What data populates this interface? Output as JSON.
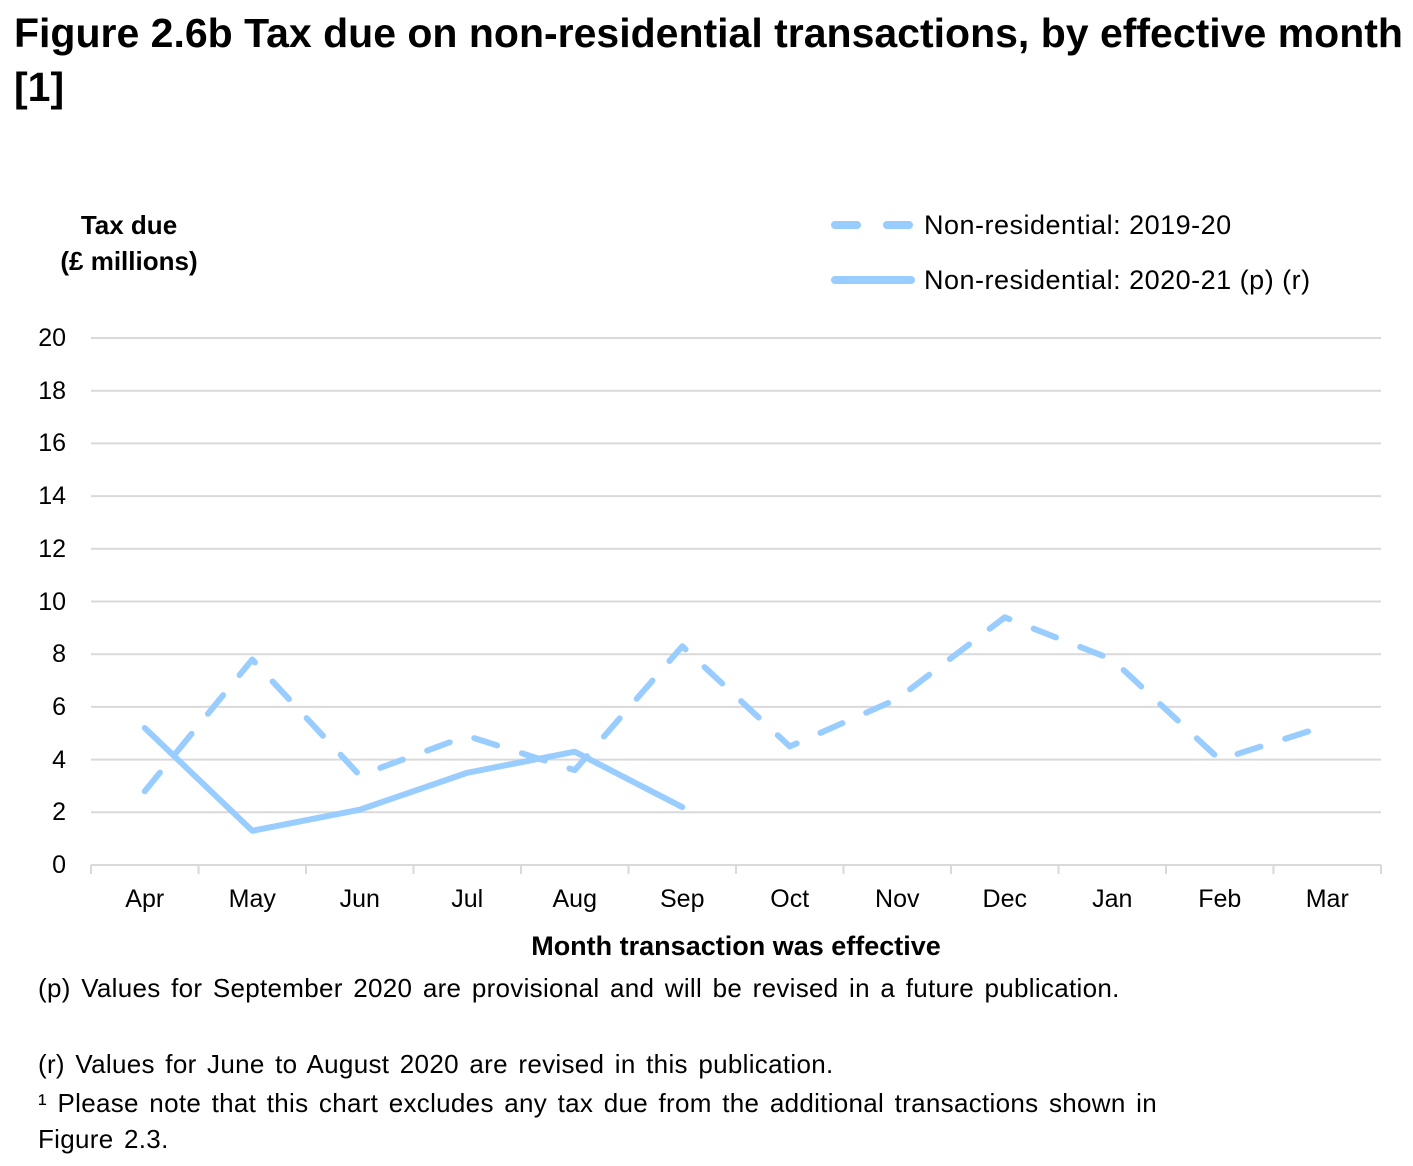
{
  "title": "Figure 2.6b  Tax due on non-residential transactions, by effective month [1]",
  "chart_data": {
    "type": "line",
    "title": "Figure 2.6b  Tax due on non-residential transactions, by effective month [1]",
    "ylabel_line1": "Tax due",
    "ylabel_line2": "(£ millions)",
    "xlabel": "Month transaction was effective",
    "ylim": [
      0,
      20
    ],
    "yticks": [
      "0",
      "2",
      "4",
      "6",
      "8",
      "10",
      "12",
      "14",
      "16",
      "18",
      "20"
    ],
    "ytick_values": [
      0,
      2,
      4,
      6,
      8,
      10,
      12,
      14,
      16,
      18,
      20
    ],
    "grid": true,
    "legend_position": "top-right",
    "categories": [
      "Apr",
      "May",
      "Jun",
      "Jul",
      "Aug",
      "Sep",
      "Oct",
      "Nov",
      "Dec",
      "Jan",
      "Feb",
      "Mar"
    ],
    "series": [
      {
        "name": "Non-residential: 2019-20",
        "style": "dashed",
        "color": "#99CCFF",
        "values": [
          2.8,
          7.8,
          3.4,
          4.9,
          3.6,
          8.3,
          4.5,
          6.3,
          9.4,
          7.8,
          4.0,
          5.3
        ]
      },
      {
        "name": "Non-residential: 2020-21 (p) (r)",
        "style": "solid",
        "color": "#99CCFF",
        "values": [
          5.2,
          1.3,
          2.1,
          3.5,
          4.3,
          2.2,
          null,
          null,
          null,
          null,
          null,
          null
        ]
      }
    ]
  },
  "notes": [
    "(p) Values for September 2020 are provisional and will be revised in a future publication.",
    "(r) Values for June to August 2020 are revised in this publication.",
    "¹ Please note that this chart excludes any tax due from the additional transactions shown in",
    "Figure 2.3."
  ],
  "colors": {
    "series": "#99CCFF",
    "grid": "#D9D9D9"
  }
}
